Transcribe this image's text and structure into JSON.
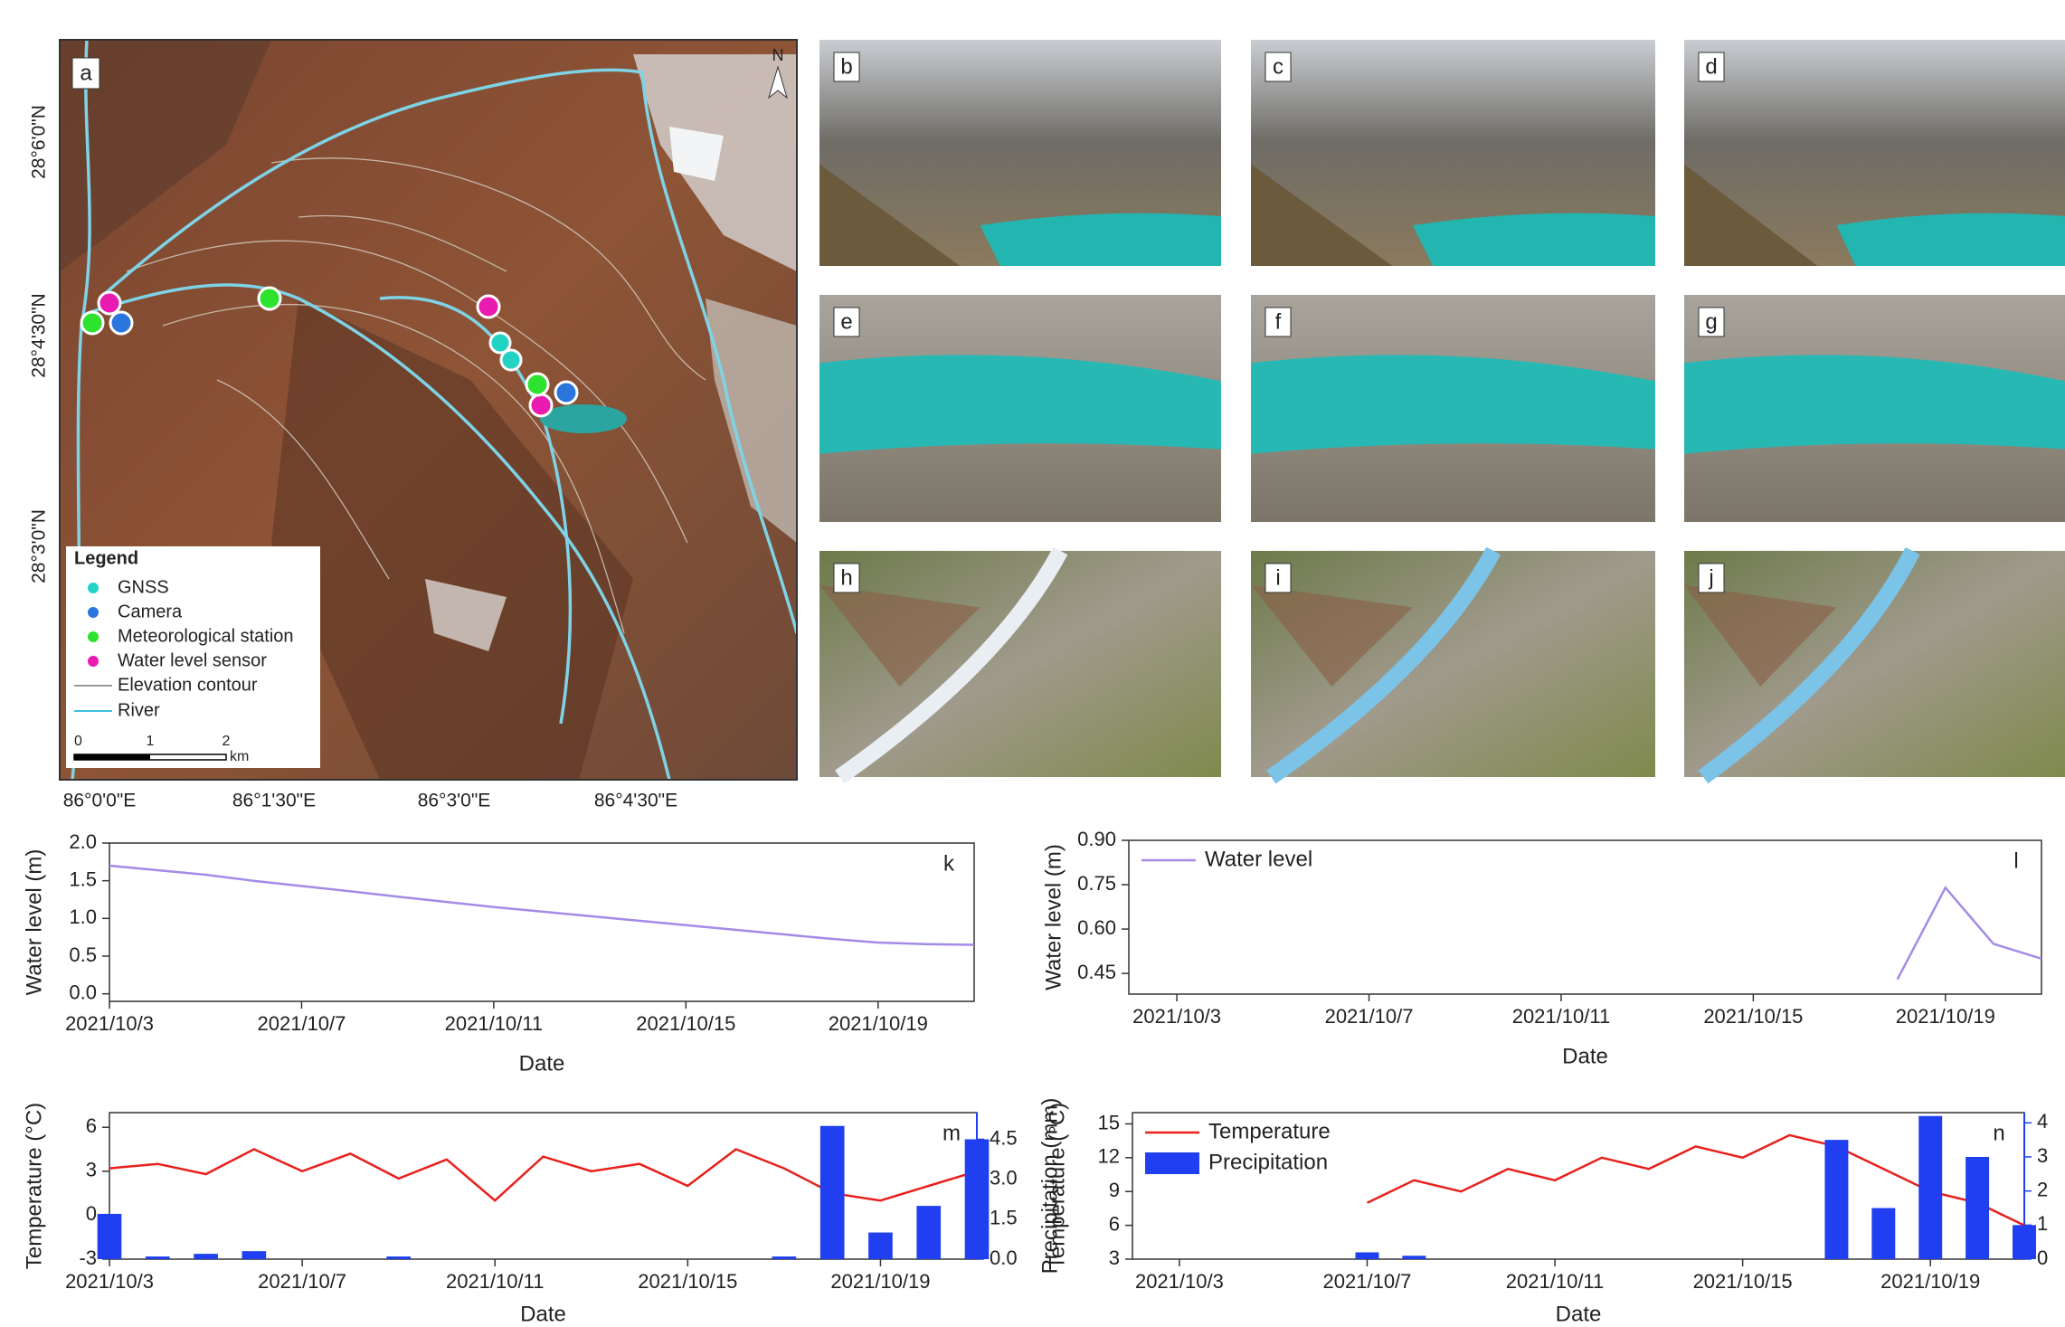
{
  "map": {
    "panel": "a",
    "north": "N",
    "lat_labels": [
      "28°6'0\"N",
      "28°4'30\"N",
      "28°3'0\"N"
    ],
    "lon_labels": [
      "86°0'0\"E",
      "86°1'30\"E",
      "86°3'0\"E",
      "86°4'30\"E"
    ],
    "legend": {
      "title": "Legend",
      "items": [
        "GNSS",
        "Camera",
        "Meteorological station",
        "Water level sensor",
        "Elevation contour",
        "River"
      ]
    },
    "scale": {
      "labels": [
        "0",
        "1",
        "2"
      ],
      "unit": "km"
    }
  },
  "photos": {
    "panels": [
      "b",
      "c",
      "d",
      "e",
      "f",
      "g",
      "h",
      "i",
      "j"
    ]
  },
  "chart_data": [
    {
      "type": "line",
      "panel": "k",
      "xlabel": "Date",
      "ylabel": "Water level (m)",
      "x": [
        "2021/10/3",
        "2021/10/4",
        "2021/10/5",
        "2021/10/6",
        "2021/10/7",
        "2021/10/8",
        "2021/10/9",
        "2021/10/10",
        "2021/10/11",
        "2021/10/12",
        "2021/10/13",
        "2021/10/14",
        "2021/10/15",
        "2021/10/16",
        "2021/10/17",
        "2021/10/18",
        "2021/10/19",
        "2021/10/20",
        "2021/10/21"
      ],
      "series": [
        {
          "name": "Water level",
          "color": "#a48be6",
          "values": [
            1.7,
            1.64,
            1.58,
            1.5,
            1.43,
            1.36,
            1.29,
            1.22,
            1.15,
            1.09,
            1.03,
            0.97,
            0.91,
            0.85,
            0.79,
            0.73,
            0.68,
            0.66,
            0.65
          ]
        }
      ],
      "xlim": [
        "2021/10/3",
        "2021/10/21"
      ],
      "xticks": [
        "2021/10/3",
        "2021/10/7",
        "2021/10/11",
        "2021/10/15",
        "2021/10/19"
      ],
      "ylim": [
        -0.1,
        2.0
      ],
      "yticks": [
        {
          "value": 0,
          "label": "0.0"
        },
        0.5,
        {
          "value": 1,
          "label": "1.0"
        },
        1.5,
        {
          "value": 2,
          "label": "2.0"
        }
      ]
    },
    {
      "type": "line",
      "panel": "l",
      "xlabel": "Date",
      "ylabel": "Water level (m)",
      "legend": "upper left",
      "x": [
        "2021/10/3",
        "2021/10/4",
        "2021/10/5",
        "2021/10/6",
        "2021/10/7",
        "2021/10/8",
        "2021/10/9",
        "2021/10/10",
        "2021/10/11",
        "2021/10/12",
        "2021/10/13",
        "2021/10/14",
        "2021/10/15",
        "2021/10/16",
        "2021/10/17",
        "2021/10/18",
        "2021/10/19",
        "2021/10/20",
        "2021/10/21"
      ],
      "series": [
        {
          "name": "Water level",
          "color": "#a48be6",
          "values": [
            null,
            null,
            null,
            null,
            null,
            null,
            null,
            null,
            null,
            null,
            null,
            null,
            null,
            null,
            null,
            0.43,
            0.74,
            0.55,
            0.5
          ]
        }
      ],
      "xlim": [
        "2021/10/2",
        "2021/10/21"
      ],
      "xticks": [
        "2021/10/3",
        "2021/10/7",
        "2021/10/11",
        "2021/10/15",
        "2021/10/19"
      ],
      "ylim": [
        0.38,
        0.9
      ],
      "yticks": [
        0.45,
        {
          "value": 0.6,
          "label": "0.60"
        },
        0.75,
        {
          "value": 0.9,
          "label": "0.90"
        }
      ]
    },
    {
      "type": "line",
      "panel": "m",
      "xlabel": "Date",
      "ylabel": "Temperature (°C)",
      "y2label": "Precipitation (mm)",
      "x": [
        "2021/10/3",
        "2021/10/4",
        "2021/10/5",
        "2021/10/6",
        "2021/10/7",
        "2021/10/8",
        "2021/10/9",
        "2021/10/10",
        "2021/10/11",
        "2021/10/12",
        "2021/10/13",
        "2021/10/14",
        "2021/10/15",
        "2021/10/16",
        "2021/10/17",
        "2021/10/18",
        "2021/10/19",
        "2021/10/20",
        "2021/10/21"
      ],
      "series": [
        {
          "name": "Temperature",
          "type": "line",
          "color": "#e8201c",
          "values": [
            3.2,
            3.5,
            2.8,
            4.5,
            3.0,
            4.2,
            2.5,
            3.8,
            1.0,
            4.0,
            3.0,
            3.5,
            2.0,
            4.5,
            3.2,
            1.5,
            1.0,
            2.0,
            3.0
          ]
        },
        {
          "name": "Precipitation",
          "type": "bar",
          "axis": "y2",
          "color": "#1f3ff0",
          "values": [
            1.7,
            0.1,
            0.2,
            0.3,
            0,
            0,
            0.1,
            0,
            0,
            0,
            0,
            0,
            0,
            0,
            0.1,
            5.0,
            1.0,
            2.0,
            4.5
          ]
        }
      ],
      "xlim": [
        "2021/10/3",
        "2021/10/21"
      ],
      "xticks": [
        "2021/10/3",
        "2021/10/7",
        "2021/10/11",
        "2021/10/15",
        "2021/10/19"
      ],
      "ylim": [
        -3,
        7
      ],
      "yticks": [
        -3,
        0,
        3,
        6
      ],
      "y2lim": [
        0,
        5.5
      ],
      "y2ticks": [
        {
          "value": 0,
          "label": "0.0"
        },
        1.5,
        {
          "value": 3,
          "label": "3.0"
        },
        4.5
      ]
    },
    {
      "type": "line",
      "panel": "n",
      "xlabel": "Date",
      "ylabel": "Temperature (°C)",
      "legend": "upper left",
      "x": [
        "2021/10/3",
        "2021/10/4",
        "2021/10/5",
        "2021/10/6",
        "2021/10/7",
        "2021/10/8",
        "2021/10/9",
        "2021/10/10",
        "2021/10/11",
        "2021/10/12",
        "2021/10/13",
        "2021/10/14",
        "2021/10/15",
        "2021/10/16",
        "2021/10/17",
        "2021/10/18",
        "2021/10/19",
        "2021/10/20",
        "2021/10/21"
      ],
      "series": [
        {
          "name": "Temperature",
          "type": "line",
          "color": "#e8201c",
          "values": [
            null,
            null,
            null,
            null,
            8,
            10,
            9,
            11,
            10,
            12,
            11,
            13,
            12,
            14,
            13,
            11,
            9,
            8,
            6
          ]
        },
        {
          "name": "Precipitation",
          "type": "bar",
          "axis": "y2",
          "color": "#1f3ff0",
          "values": [
            0,
            0,
            0,
            0,
            0.2,
            0.1,
            0,
            0,
            0,
            0,
            0,
            0,
            0,
            0,
            3.5,
            1.5,
            4.2,
            3.0,
            1.0
          ]
        }
      ],
      "xlim": [
        "2021/10/2",
        "2021/10/21"
      ],
      "xticks": [
        "2021/10/3",
        "2021/10/7",
        "2021/10/11",
        "2021/10/15",
        "2021/10/19"
      ],
      "ylim": [
        3,
        16
      ],
      "yticks": [
        3,
        6,
        9,
        12,
        15
      ],
      "y2lim": [
        0,
        4.3
      ],
      "y2ticks": [
        0,
        1,
        2,
        3,
        4
      ]
    }
  ]
}
